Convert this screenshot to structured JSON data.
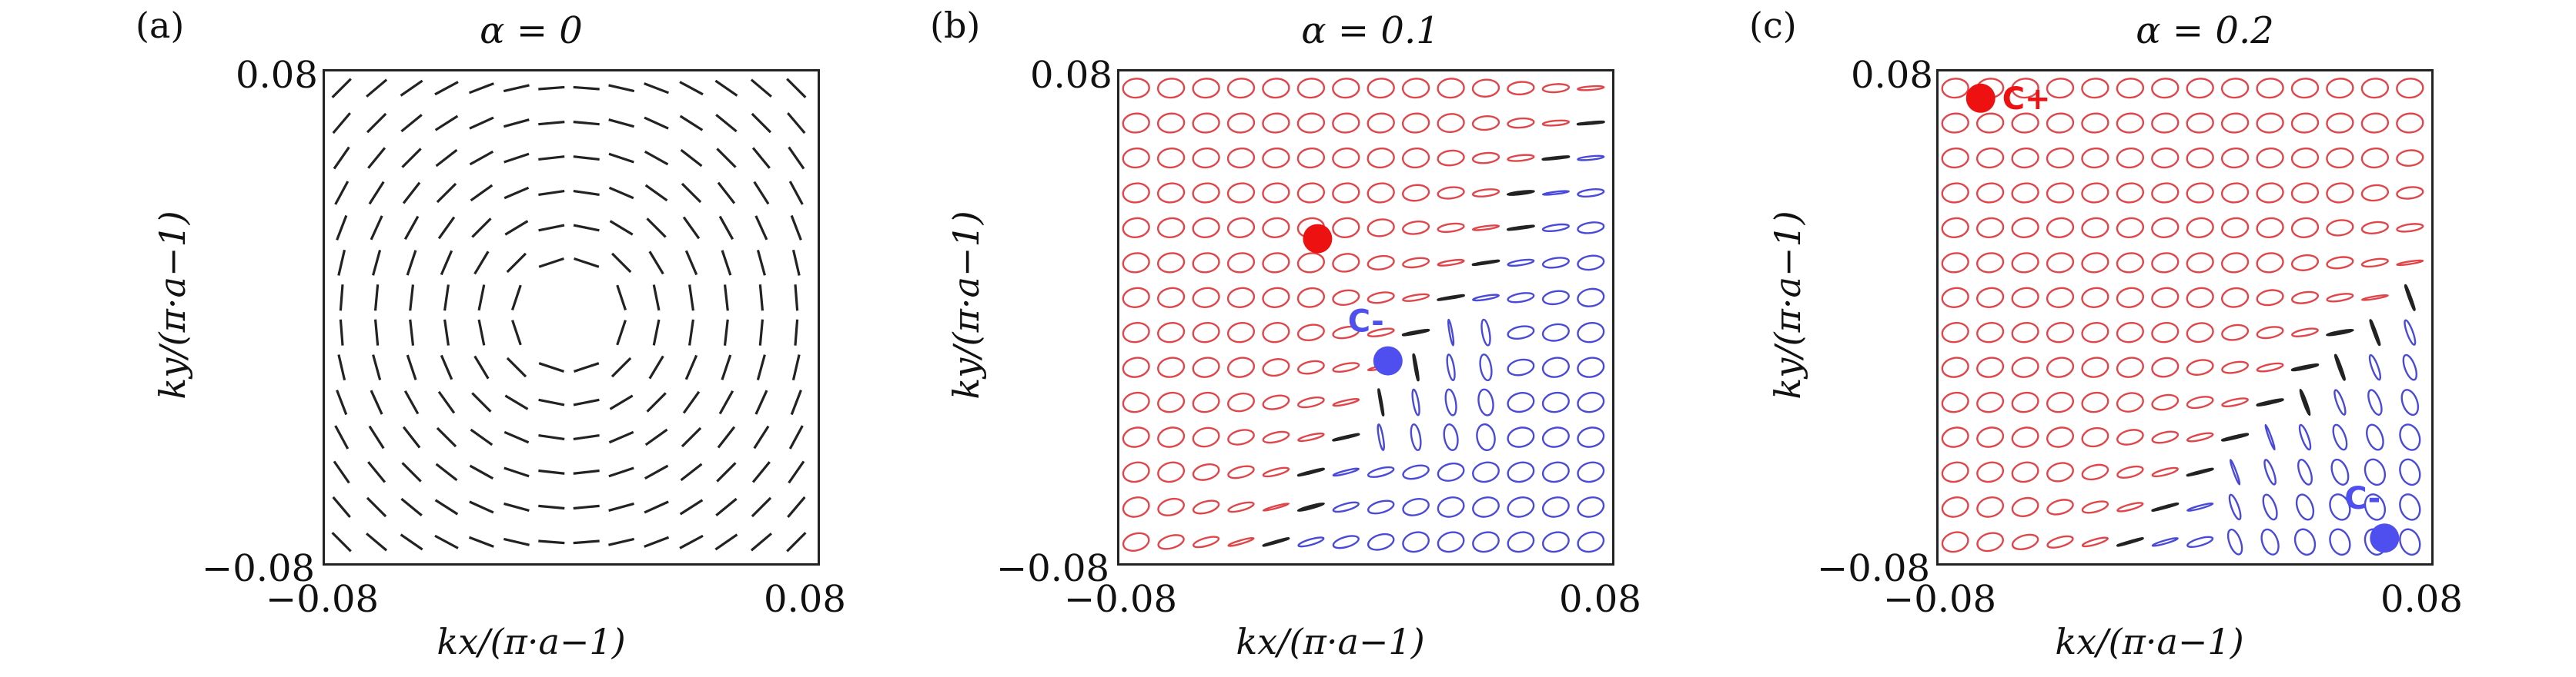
{
  "panels": [
    {
      "id": "a",
      "label": "(a)",
      "title": "α = 0",
      "y_tick_top": "0.08",
      "y_tick_bottom": "−0.08",
      "x_tick_left": "−0.08",
      "x_tick_right": "0.08",
      "xlabel": "kx/(π·a−1)",
      "ylabel": "ky/(π·a−1)",
      "markers": []
    },
    {
      "id": "b",
      "label": "(b)",
      "title": "α = 0.1",
      "y_tick_top": "0.08",
      "y_tick_bottom": "−0.08",
      "x_tick_left": "−0.08",
      "x_tick_right": "0.08",
      "xlabel": "kx/(π·a−1)",
      "ylabel": "ky/(π·a−1)",
      "markers": [
        {
          "kind": "C+",
          "text": "",
          "kx": -0.015,
          "ky": 0.025,
          "color": "#ee1111"
        },
        {
          "kind": "C-",
          "text": "C-",
          "kx": 0.008,
          "ky": -0.015,
          "color": "#4f4ff0"
        }
      ]
    },
    {
      "id": "c",
      "label": "(c)",
      "title": "α = 0.2",
      "y_tick_top": "0.08",
      "y_tick_bottom": "−0.08",
      "x_tick_left": "−0.08",
      "x_tick_right": "0.08",
      "xlabel": "kx/(π·a−1)",
      "ylabel": "ky/(π·a−1)",
      "markers": [
        {
          "kind": "C+",
          "text": "C+",
          "kx": -0.066,
          "ky": 0.071,
          "color": "#ee1111"
        },
        {
          "kind": "C-",
          "text": "C-",
          "kx": 0.066,
          "ky": -0.073,
          "color": "#4f4ff0"
        }
      ]
    }
  ],
  "colors": {
    "right_handed": "#e0454a",
    "left_handed": "#4a4ad8",
    "linear": "#222222"
  }
}
